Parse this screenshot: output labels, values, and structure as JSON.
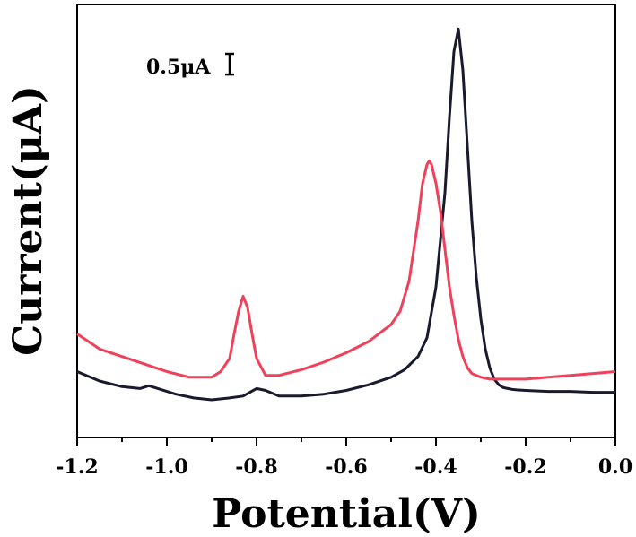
{
  "chart_data": {
    "type": "line",
    "xlabel": "Potential(V)",
    "ylabel": "Current(μA)",
    "xlim": [
      -1.2,
      0.0
    ],
    "ylim": [
      -0.25,
      2.05
    ],
    "x_ticks": [
      "-1.2",
      "-1.0",
      "-0.8",
      "-0.6",
      "-0.4",
      "-0.2",
      "0.0"
    ],
    "x_tick_values": [
      -1.2,
      -1.0,
      -0.8,
      -0.6,
      -0.4,
      -0.2,
      0.0
    ],
    "grid": false,
    "legend": "none",
    "scale_bar": {
      "label": "0.5μA",
      "value": 0.5
    },
    "series": [
      {
        "color": "#1a1a2e",
        "x": [
          -1.2,
          -1.15,
          -1.1,
          -1.06,
          -1.04,
          -1.02,
          -0.98,
          -0.94,
          -0.9,
          -0.86,
          -0.83,
          -0.8,
          -0.78,
          -0.75,
          -0.7,
          -0.65,
          -0.6,
          -0.55,
          -0.5,
          -0.47,
          -0.44,
          -0.42,
          -0.4,
          -0.38,
          -0.37,
          -0.36,
          -0.35,
          -0.34,
          -0.33,
          -0.32,
          -0.31,
          -0.3,
          -0.29,
          -0.28,
          -0.27,
          -0.26,
          -0.25,
          -0.24,
          -0.23,
          -0.22,
          -0.2,
          -0.15,
          -0.1,
          -0.05,
          0.0
        ],
        "y": [
          0.1,
          0.05,
          0.02,
          0.01,
          0.025,
          0.01,
          -0.02,
          -0.04,
          -0.05,
          -0.04,
          -0.03,
          0.01,
          0.0,
          -0.03,
          -0.03,
          -0.02,
          0.0,
          0.03,
          0.07,
          0.11,
          0.18,
          0.28,
          0.55,
          1.05,
          1.45,
          1.8,
          1.92,
          1.7,
          1.3,
          0.9,
          0.6,
          0.38,
          0.22,
          0.12,
          0.06,
          0.03,
          0.015,
          0.01,
          0.005,
          0.003,
          0.0,
          -0.005,
          -0.005,
          -0.01,
          -0.01
        ]
      },
      {
        "color": "#f0405a",
        "x": [
          -1.2,
          -1.15,
          -1.1,
          -1.05,
          -1.0,
          -0.95,
          -0.9,
          -0.88,
          -0.86,
          -0.85,
          -0.84,
          -0.83,
          -0.82,
          -0.81,
          -0.8,
          -0.78,
          -0.75,
          -0.7,
          -0.65,
          -0.6,
          -0.55,
          -0.5,
          -0.48,
          -0.46,
          -0.44,
          -0.43,
          -0.42,
          -0.415,
          -0.41,
          -0.4,
          -0.39,
          -0.38,
          -0.37,
          -0.36,
          -0.35,
          -0.34,
          -0.33,
          -0.32,
          -0.3,
          -0.28,
          -0.25,
          -0.2,
          -0.15,
          -0.1,
          -0.05,
          0.0
        ],
        "y": [
          0.3,
          0.22,
          0.18,
          0.14,
          0.1,
          0.07,
          0.07,
          0.1,
          0.17,
          0.3,
          0.42,
          0.5,
          0.44,
          0.3,
          0.17,
          0.08,
          0.08,
          0.11,
          0.15,
          0.2,
          0.26,
          0.35,
          0.42,
          0.58,
          0.9,
          1.1,
          1.2,
          1.22,
          1.2,
          1.1,
          0.95,
          0.75,
          0.55,
          0.4,
          0.27,
          0.18,
          0.12,
          0.09,
          0.07,
          0.06,
          0.06,
          0.06,
          0.07,
          0.08,
          0.09,
          0.1
        ]
      }
    ]
  }
}
